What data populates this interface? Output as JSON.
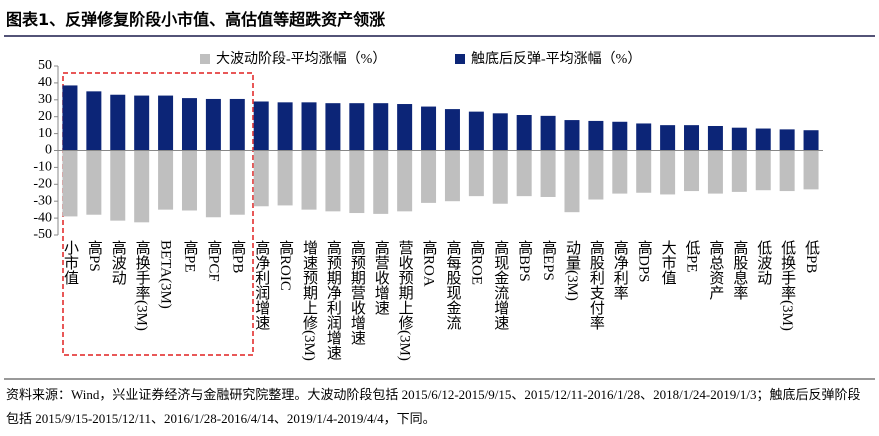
{
  "chart_data": {
    "type": "bar",
    "title": "图表1、反弹修复阶段小市值、高估值等超跌资产领涨",
    "categories": [
      "小市值",
      "高PS",
      "高波动",
      "高换手率(3M)",
      "BETA(3M)",
      "高PE",
      "高PCF",
      "高PB",
      "高净利润增速",
      "高ROIC",
      "增速预期上修(3M)",
      "高预期净利润增速",
      "高预期营收增速",
      "高营收增速",
      "营收预期上修(3M)",
      "高ROA",
      "高每股现金流",
      "高ROE",
      "高现金流增速",
      "高BPS",
      "高EPS",
      "动量(3M)",
      "高股利支付率",
      "高净利率",
      "高DPS",
      "大市值",
      "低PE",
      "高总资产",
      "高股息率",
      "低波动",
      "低换手率(3M)",
      "低PB"
    ],
    "series": [
      {
        "name": "大波动阶段-平均涨幅（%）",
        "color": "#bfbfbf",
        "values": [
          -39,
          -38,
          -41.5,
          -42.5,
          -35,
          -35.5,
          -39.5,
          -38,
          -33,
          -32.5,
          -35,
          -36,
          -37,
          -37.5,
          -36,
          -31,
          -30,
          -27,
          -31.5,
          -27,
          -27.5,
          -36.5,
          -29,
          -25.5,
          -25,
          -26,
          -24,
          -25.5,
          -24.5,
          -23.5,
          -24,
          -23
        ]
      },
      {
        "name": "触底后反弹-平均涨幅（%）",
        "color": "#0c2577",
        "values": [
          38.5,
          35,
          33,
          32.5,
          32.5,
          31,
          30.5,
          30.5,
          29,
          28.5,
          28.5,
          28,
          28,
          28,
          27.5,
          26,
          24.5,
          23,
          22,
          21,
          20.5,
          18,
          17.5,
          17,
          16,
          15,
          15,
          14.5,
          13.5,
          13,
          12.5,
          12
        ]
      }
    ],
    "ylim": [
      -50,
      50
    ],
    "yticks": [
      -50,
      -40,
      -30,
      -20,
      -10,
      0,
      10,
      20,
      30,
      40,
      50
    ],
    "note": "资料来源：Wind，兴业证券经济与金融研究院整理。大波动阶段包括 2015/6/12-2015/9/15、2015/12/11-2016/1/28、2018/1/24-2019/1/3；触底后反弹阶段包括 2015/9/15-2015/12/11、2016/1/28-2016/4/14、2019/1/4-2019/4/4，下同。"
  }
}
